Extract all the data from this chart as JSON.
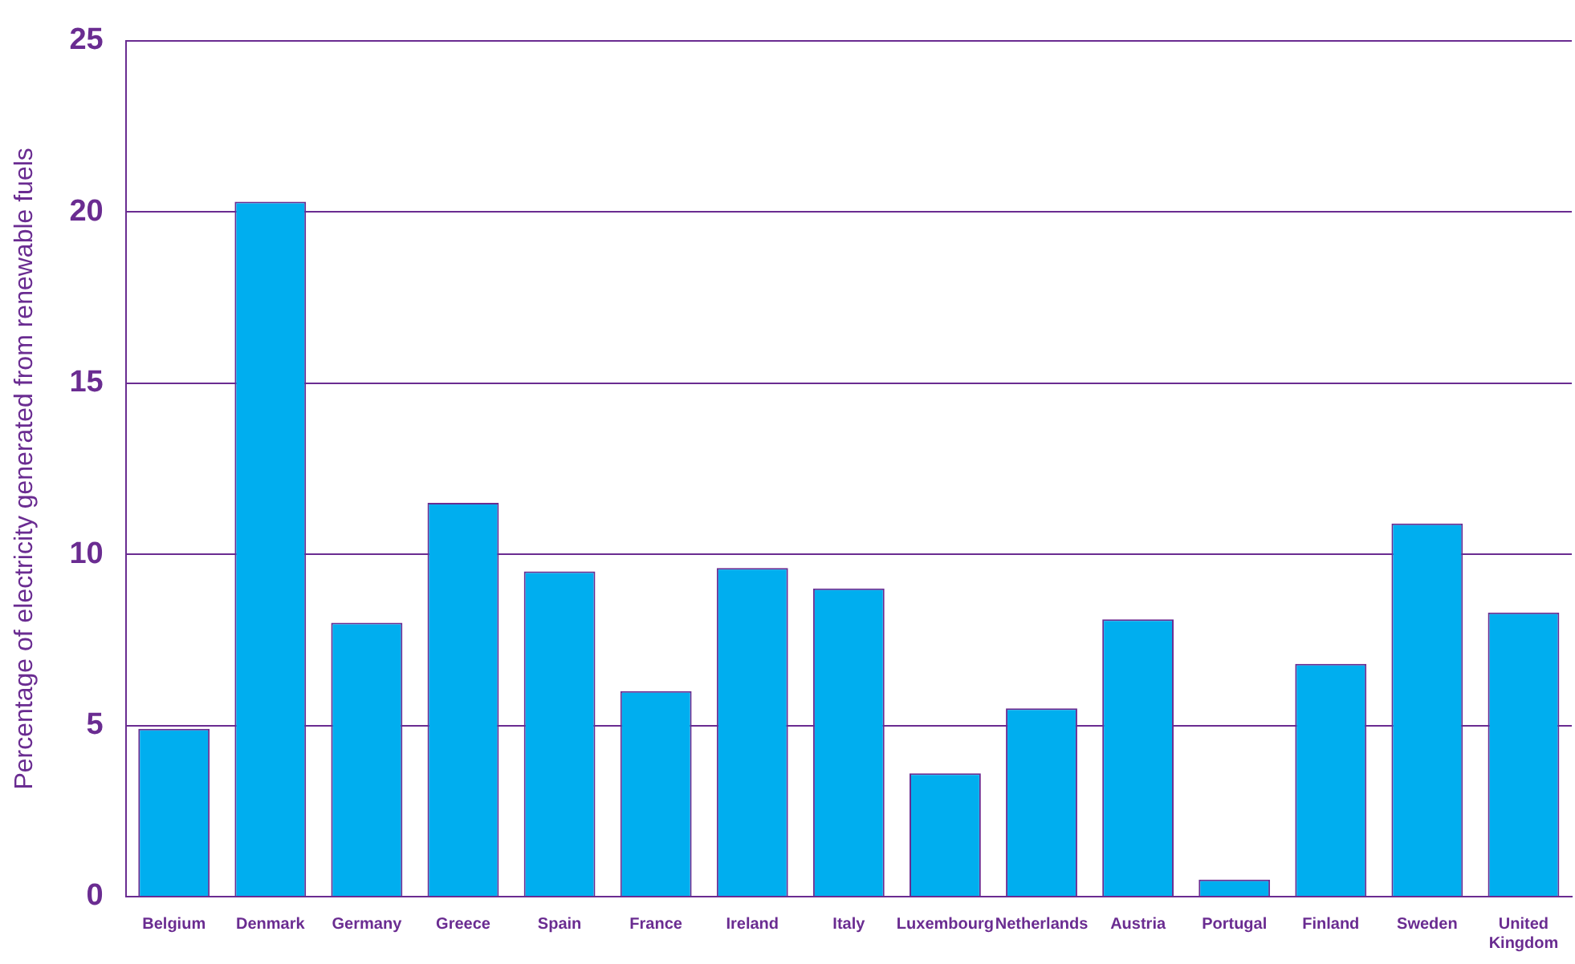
{
  "chart_data": {
    "type": "bar",
    "ylabel": "Percentage of electricity generated from renewable fuels",
    "categories": [
      "Belgium",
      "Denmark",
      "Germany",
      "Greece",
      "Spain",
      "France",
      "Ireland",
      "Italy",
      "Luxembourg",
      "Netherlands",
      "Austria",
      "Portugal",
      "Finland",
      "Sweden",
      "United Kingdom"
    ],
    "values": [
      4.9,
      20.3,
      8.0,
      11.5,
      9.5,
      6.0,
      9.6,
      9.0,
      3.6,
      5.5,
      8.1,
      0.5,
      6.8,
      10.9,
      8.3
    ],
    "color": "#00aeef",
    "ylim": [
      0,
      25
    ],
    "yticks": [
      0,
      5,
      10,
      15,
      20,
      25
    ],
    "grid": "y",
    "legend": false
  }
}
